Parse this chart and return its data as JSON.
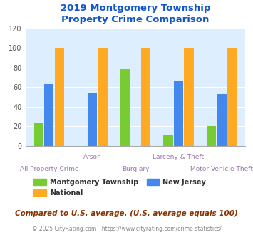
{
  "title": "2019 Montgomery Township\nProperty Crime Comparison",
  "categories": [
    "All Property Crime",
    "Arson",
    "Burglary",
    "Larceny & Theft",
    "Motor Vehicle Theft"
  ],
  "montgomery": [
    23,
    0,
    78,
    11,
    20
  ],
  "national": [
    100,
    100,
    100,
    100,
    100
  ],
  "new_jersey": [
    63,
    54,
    0,
    66,
    53
  ],
  "colors": {
    "montgomery": "#77cc33",
    "national": "#ffaa22",
    "new_jersey": "#4488ee"
  },
  "ylim": [
    0,
    120
  ],
  "yticks": [
    0,
    20,
    40,
    60,
    80,
    100,
    120
  ],
  "label_color": "#9977aa",
  "title_color": "#1155cc",
  "plot_bg": "#ddeeff",
  "legend_text_color": "#333333",
  "footer_text": "Compared to U.S. average. (U.S. average equals 100)",
  "footer_color": "#883300",
  "credit_text": "© 2025 CityRating.com - https://www.cityrating.com/crime-statistics/",
  "credit_color": "#888888",
  "bar_width": 0.22,
  "bar_gap": 0.02
}
